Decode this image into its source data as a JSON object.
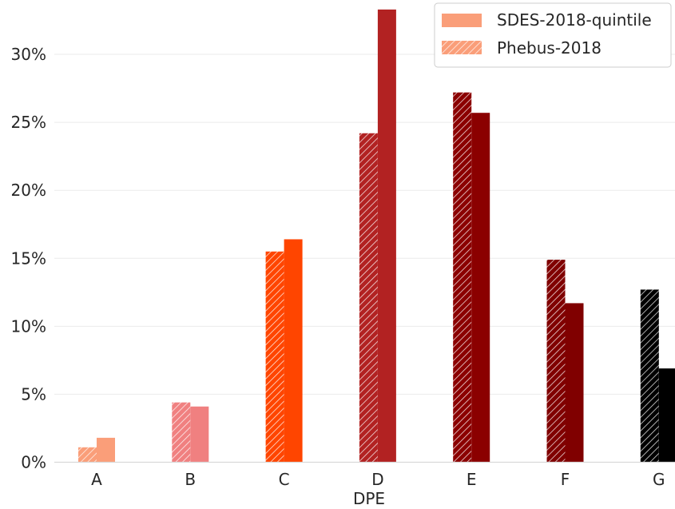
{
  "chart_data": {
    "type": "bar",
    "xlabel": "DPE",
    "ylabel": "",
    "ylim": [
      0,
      34
    ],
    "yticks": [
      0,
      5,
      10,
      15,
      20,
      25,
      30
    ],
    "ytick_labels": [
      "0%",
      "5%",
      "10%",
      "15%",
      "20%",
      "25%",
      "30%"
    ],
    "categories": [
      "A",
      "B",
      "C",
      "D",
      "E",
      "F",
      "G"
    ],
    "category_colors": [
      "#fa9e79",
      "#f08080",
      "#ff4500",
      "#b22222",
      "#8b0000",
      "#800000",
      "#000000"
    ],
    "grid": "horizontal",
    "legend_position": "top-right",
    "series": [
      {
        "name": "Phebus-2018",
        "pattern": "hatched",
        "values": [
          1.1,
          4.4,
          15.5,
          24.2,
          27.2,
          14.9,
          12.7
        ]
      },
      {
        "name": "SDES-2018-quintile",
        "pattern": "solid",
        "values": [
          1.8,
          4.1,
          16.4,
          33.3,
          25.7,
          11.7,
          6.9
        ]
      }
    ],
    "legend": [
      {
        "name": "SDES-2018-quintile",
        "pattern": "solid"
      },
      {
        "name": "Phebus-2018",
        "pattern": "hatched"
      }
    ]
  }
}
